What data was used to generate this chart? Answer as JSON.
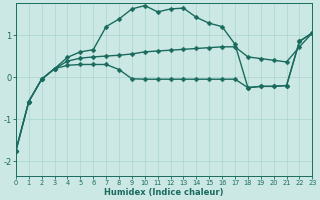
{
  "xlabel": "Humidex (Indice chaleur)",
  "bg_color": "#cce8e5",
  "line_color": "#1a6b5e",
  "grid_color": "#aad5d0",
  "xlim": [
    0,
    23
  ],
  "ylim": [
    -2.35,
    1.75
  ],
  "xticks": [
    0,
    1,
    2,
    3,
    4,
    5,
    6,
    7,
    8,
    9,
    10,
    11,
    12,
    13,
    14,
    15,
    16,
    17,
    18,
    19,
    20,
    21,
    22,
    23
  ],
  "yticks": [
    -2,
    -1,
    0,
    1
  ],
  "line_upper_x": [
    0,
    1,
    2,
    3,
    4,
    5,
    6,
    7,
    8,
    9,
    10,
    11,
    12,
    13,
    14,
    15,
    16,
    17,
    18,
    19,
    20,
    21,
    22,
    23
  ],
  "line_upper_y": [
    -1.75,
    -0.58,
    -0.05,
    0.2,
    0.47,
    0.6,
    0.65,
    1.2,
    1.38,
    1.62,
    1.7,
    1.55,
    1.62,
    1.64,
    1.42,
    1.28,
    1.2,
    0.78,
    -0.25,
    -0.22,
    -0.22,
    -0.2,
    0.85,
    1.05
  ],
  "line_mid_x": [
    0,
    1,
    2,
    3,
    4,
    5,
    6,
    7,
    8,
    9,
    10,
    11,
    12,
    13,
    14,
    15,
    16,
    17,
    18,
    19,
    20,
    21,
    22,
    23
  ],
  "line_mid_y": [
    -1.75,
    -0.58,
    -0.05,
    0.2,
    0.38,
    0.45,
    0.48,
    0.5,
    0.52,
    0.55,
    0.6,
    0.62,
    0.64,
    0.66,
    0.68,
    0.7,
    0.72,
    0.72,
    0.48,
    0.44,
    0.4,
    0.36,
    0.72,
    1.05
  ],
  "line_low_x": [
    0,
    1,
    2,
    3,
    4,
    5,
    6,
    7,
    8,
    9,
    10,
    11,
    12,
    13,
    14,
    15,
    16,
    17,
    18,
    19,
    20,
    21,
    22,
    23
  ],
  "line_low_y": [
    -1.75,
    -0.58,
    -0.05,
    0.2,
    0.28,
    0.3,
    0.3,
    0.3,
    0.18,
    -0.04,
    -0.05,
    -0.05,
    -0.05,
    -0.05,
    -0.05,
    -0.05,
    -0.05,
    -0.05,
    -0.25,
    -0.22,
    -0.22,
    -0.2,
    0.85,
    1.05
  ],
  "marker": "D",
  "markersize": 2.5,
  "linewidth": 1.0
}
